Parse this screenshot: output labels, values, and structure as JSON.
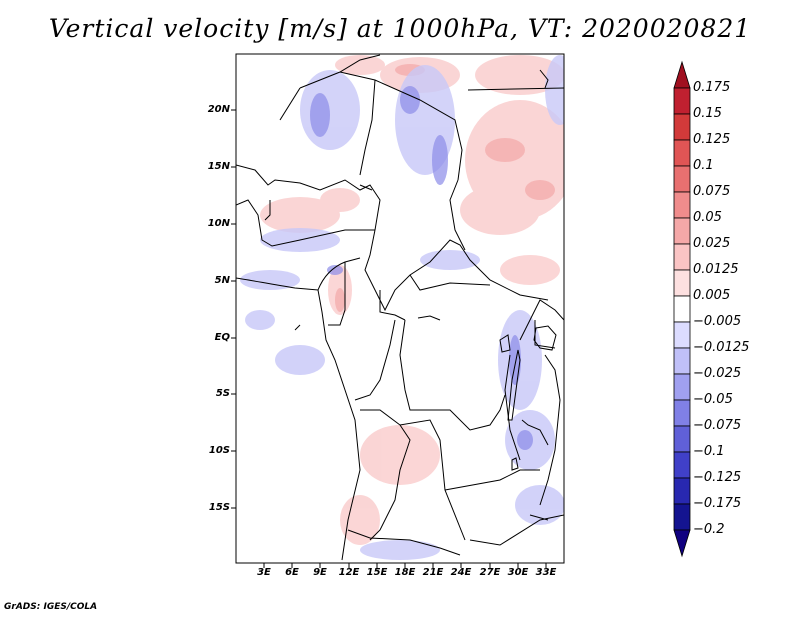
{
  "title": "Vertical velocity [m/s] at 1000hPa, VT: 2020020821",
  "footer": "GrADS: IGES/COLA",
  "map": {
    "lat_labels": [
      "20N",
      "15N",
      "10N",
      "5N",
      "EQ",
      "5S",
      "10S",
      "15S"
    ],
    "lon_labels": [
      "3E",
      "6E",
      "9E",
      "12E",
      "15E",
      "18E",
      "21E",
      "24E",
      "27E",
      "30E",
      "33E"
    ]
  },
  "colorbar": {
    "labels": [
      "0.175",
      "0.15",
      "0.125",
      "0.1",
      "0.075",
      "0.05",
      "0.025",
      "0.0125",
      "0.005",
      "−0.005",
      "−0.0125",
      "−0.025",
      "−0.05",
      "−0.075",
      "−0.1",
      "−0.125",
      "−0.175",
      "−0.2"
    ],
    "colors": [
      "#a01020",
      "#c02030",
      "#d23a3a",
      "#e05555",
      "#e87070",
      "#f08c8c",
      "#f5a8a8",
      "#fac4c4",
      "#fde0e0",
      "#ffffff",
      "#dcdcff",
      "#c0c0f8",
      "#a0a0f0",
      "#8080e6",
      "#6060d8",
      "#4040c8",
      "#2828b0",
      "#141490",
      "#100080"
    ]
  }
}
